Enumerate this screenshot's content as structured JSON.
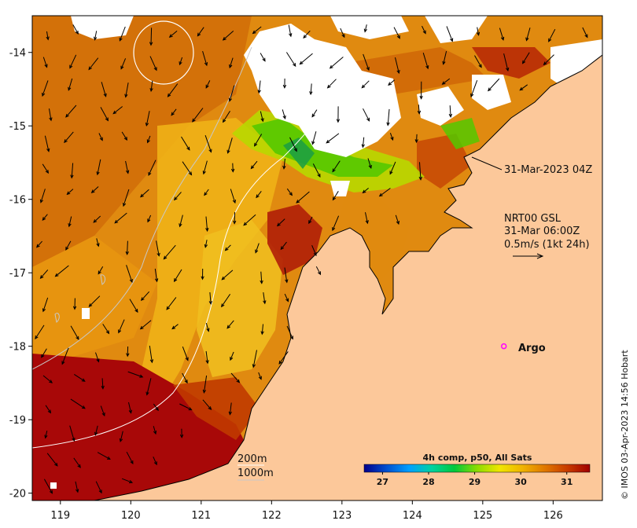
{
  "map": {
    "lon_ticks": [
      "119",
      "120",
      "121",
      "122",
      "123",
      "124",
      "125",
      "126"
    ],
    "lat_ticks": [
      "-14",
      "-15",
      "-16",
      "-17",
      "-18",
      "-19",
      "-20"
    ],
    "lon_range": [
      118.6,
      126.7
    ],
    "lat_range": [
      -20.1,
      -13.5
    ],
    "colors": {
      "land": "#fcc89a",
      "cloud": "#ffffff",
      "coast": "#000000",
      "bathy_200": "#ffffff",
      "bathy_1000": "#c8c8c8"
    }
  },
  "annotations": {
    "sst_time": "31-Mar-2023 04Z",
    "current_source": "NRT00 GSL",
    "current_time": "31-Mar 06:00Z",
    "current_scale": "0.5m/s (1kt 24h)",
    "argo_label": "Argo",
    "contour_200": "200m",
    "contour_1000": "1000m"
  },
  "argo": {
    "lon": 125.3,
    "lat": -18.0,
    "color": "#ff00ff"
  },
  "colorbar": {
    "title": "4h comp, p50, All Sats",
    "ticks": [
      "27",
      "28",
      "29",
      "30",
      "31"
    ],
    "min": 26.6,
    "max": 31.5,
    "stops": [
      "#00008b",
      "#0050d0",
      "#00a0ff",
      "#00d2a0",
      "#00c83c",
      "#8cdc00",
      "#f0e600",
      "#f0b400",
      "#e07800",
      "#c83c00",
      "#a00000"
    ]
  },
  "credit": "© IMOS 03-Apr-2023 14:56 Hobart"
}
